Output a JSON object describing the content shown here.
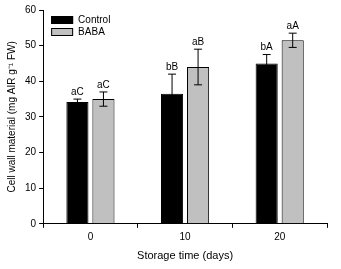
{
  "chart_data": {
    "type": "bar",
    "categories": [
      "0",
      "10",
      "20"
    ],
    "x_label": "Storage time (days)",
    "y_label": "Cell wall material (mg AIR g⁻¹ FW)",
    "series": [
      {
        "name": "Control",
        "color": "#000000",
        "values": [
          34.2,
          36.5,
          45.0
        ],
        "errors": [
          0.8,
          5.5,
          2.5
        ],
        "annotations": [
          "aC",
          "bB",
          "bA"
        ]
      },
      {
        "name": "BABA",
        "color": "#c0c0c0",
        "values": [
          35.0,
          44.0,
          51.5
        ],
        "errors": [
          2.0,
          5.0,
          2.0
        ],
        "annotations": [
          "aC",
          "aB",
          "aA"
        ]
      }
    ],
    "ylim": [
      0,
      60
    ],
    "yticks": [
      0,
      10,
      20,
      30,
      40,
      50,
      60
    ],
    "grid": false,
    "legend": "upper left"
  }
}
